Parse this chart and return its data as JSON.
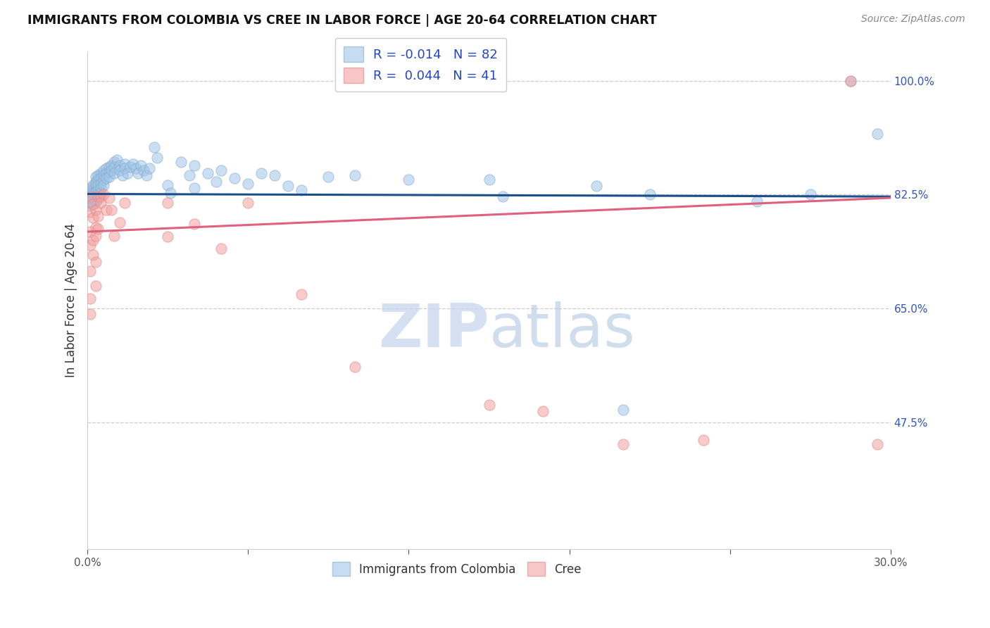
{
  "title": "IMMIGRANTS FROM COLOMBIA VS CREE IN LABOR FORCE | AGE 20-64 CORRELATION CHART",
  "source": "Source: ZipAtlas.com",
  "ylabel": "In Labor Force | Age 20-64",
  "xlim": [
    0.0,
    0.3
  ],
  "ylim": [
    0.28,
    1.045
  ],
  "watermark_text": "ZIPatlas",
  "legend_blue_R": "-0.014",
  "legend_blue_N": "82",
  "legend_pink_R": "0.044",
  "legend_pink_N": "41",
  "blue_color": "#9fc5e8",
  "pink_color": "#f4a0a0",
  "blue_line_color": "#1a4f8a",
  "pink_line_color": "#e06080",
  "blue_scatter": [
    [
      0.001,
      0.833
    ],
    [
      0.001,
      0.82
    ],
    [
      0.001,
      0.815
    ],
    [
      0.001,
      0.808
    ],
    [
      0.001,
      0.825
    ],
    [
      0.001,
      0.835
    ],
    [
      0.002,
      0.84
    ],
    [
      0.002,
      0.832
    ],
    [
      0.002,
      0.825
    ],
    [
      0.002,
      0.818
    ],
    [
      0.002,
      0.81
    ],
    [
      0.002,
      0.828
    ],
    [
      0.003,
      0.852
    ],
    [
      0.003,
      0.845
    ],
    [
      0.003,
      0.838
    ],
    [
      0.003,
      0.83
    ],
    [
      0.003,
      0.822
    ],
    [
      0.003,
      0.815
    ],
    [
      0.003,
      0.842
    ],
    [
      0.004,
      0.855
    ],
    [
      0.004,
      0.848
    ],
    [
      0.004,
      0.84
    ],
    [
      0.004,
      0.832
    ],
    [
      0.004,
      0.825
    ],
    [
      0.004,
      0.818
    ],
    [
      0.005,
      0.858
    ],
    [
      0.005,
      0.85
    ],
    [
      0.005,
      0.842
    ],
    [
      0.005,
      0.835
    ],
    [
      0.005,
      0.828
    ],
    [
      0.006,
      0.862
    ],
    [
      0.006,
      0.855
    ],
    [
      0.006,
      0.848
    ],
    [
      0.006,
      0.84
    ],
    [
      0.007,
      0.865
    ],
    [
      0.007,
      0.858
    ],
    [
      0.007,
      0.85
    ],
    [
      0.008,
      0.868
    ],
    [
      0.008,
      0.86
    ],
    [
      0.008,
      0.852
    ],
    [
      0.009,
      0.87
    ],
    [
      0.009,
      0.862
    ],
    [
      0.01,
      0.875
    ],
    [
      0.01,
      0.868
    ],
    [
      0.01,
      0.858
    ],
    [
      0.011,
      0.878
    ],
    [
      0.012,
      0.87
    ],
    [
      0.012,
      0.862
    ],
    [
      0.013,
      0.855
    ],
    [
      0.014,
      0.872
    ],
    [
      0.014,
      0.865
    ],
    [
      0.015,
      0.858
    ],
    [
      0.016,
      0.868
    ],
    [
      0.017,
      0.872
    ],
    [
      0.018,
      0.865
    ],
    [
      0.019,
      0.858
    ],
    [
      0.02,
      0.87
    ],
    [
      0.021,
      0.862
    ],
    [
      0.022,
      0.855
    ],
    [
      0.023,
      0.865
    ],
    [
      0.025,
      0.898
    ],
    [
      0.026,
      0.882
    ],
    [
      0.03,
      0.84
    ],
    [
      0.031,
      0.828
    ],
    [
      0.035,
      0.875
    ],
    [
      0.038,
      0.855
    ],
    [
      0.04,
      0.87
    ],
    [
      0.04,
      0.835
    ],
    [
      0.045,
      0.858
    ],
    [
      0.048,
      0.845
    ],
    [
      0.05,
      0.862
    ],
    [
      0.055,
      0.85
    ],
    [
      0.06,
      0.842
    ],
    [
      0.065,
      0.858
    ],
    [
      0.07,
      0.855
    ],
    [
      0.075,
      0.838
    ],
    [
      0.08,
      0.832
    ],
    [
      0.09,
      0.852
    ],
    [
      0.1,
      0.855
    ],
    [
      0.12,
      0.848
    ],
    [
      0.15,
      0.848
    ],
    [
      0.155,
      0.822
    ],
    [
      0.19,
      0.838
    ],
    [
      0.2,
      0.495
    ],
    [
      0.21,
      0.825
    ],
    [
      0.25,
      0.815
    ],
    [
      0.27,
      0.825
    ],
    [
      0.285,
      1.0
    ],
    [
      0.295,
      0.918
    ]
  ],
  "pink_scatter": [
    [
      0.001,
      0.822
    ],
    [
      0.001,
      0.798
    ],
    [
      0.001,
      0.768
    ],
    [
      0.001,
      0.748
    ],
    [
      0.001,
      0.708
    ],
    [
      0.001,
      0.665
    ],
    [
      0.001,
      0.642
    ],
    [
      0.002,
      0.81
    ],
    [
      0.002,
      0.79
    ],
    [
      0.002,
      0.755
    ],
    [
      0.002,
      0.732
    ],
    [
      0.003,
      0.802
    ],
    [
      0.003,
      0.775
    ],
    [
      0.003,
      0.762
    ],
    [
      0.003,
      0.722
    ],
    [
      0.003,
      0.685
    ],
    [
      0.004,
      0.822
    ],
    [
      0.004,
      0.792
    ],
    [
      0.004,
      0.772
    ],
    [
      0.005,
      0.822
    ],
    [
      0.005,
      0.812
    ],
    [
      0.006,
      0.825
    ],
    [
      0.007,
      0.802
    ],
    [
      0.008,
      0.82
    ],
    [
      0.009,
      0.802
    ],
    [
      0.01,
      0.762
    ],
    [
      0.012,
      0.782
    ],
    [
      0.014,
      0.812
    ],
    [
      0.03,
      0.812
    ],
    [
      0.03,
      0.76
    ],
    [
      0.04,
      0.78
    ],
    [
      0.05,
      0.742
    ],
    [
      0.06,
      0.812
    ],
    [
      0.08,
      0.672
    ],
    [
      0.1,
      0.56
    ],
    [
      0.15,
      0.502
    ],
    [
      0.17,
      0.492
    ],
    [
      0.2,
      0.442
    ],
    [
      0.23,
      0.448
    ],
    [
      0.285,
      1.0
    ],
    [
      0.295,
      0.442
    ]
  ],
  "blue_trend_x": [
    0.0,
    0.3
  ],
  "blue_trend_y": [
    0.826,
    0.822
  ],
  "pink_trend_x": [
    0.0,
    0.3
  ],
  "pink_trend_y": [
    0.768,
    0.82
  ],
  "ytick_positions": [
    0.475,
    0.65,
    0.825,
    1.0
  ],
  "ytick_labels": [
    "47.5%",
    "65.0%",
    "82.5%",
    "100.0%"
  ],
  "xtick_positions": [
    0.0,
    0.06,
    0.12,
    0.18,
    0.24,
    0.3
  ],
  "xtick_labels": [
    "0.0%",
    "",
    "",
    "",
    "",
    "30.0%"
  ]
}
